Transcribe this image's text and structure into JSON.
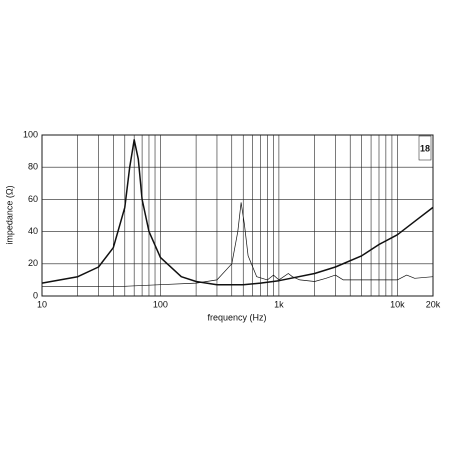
{
  "chart_data": {
    "type": "line",
    "logo": "18",
    "xlabel": "frequency (Hz)",
    "ylabel": "impedance (Ω)",
    "xlog": true,
    "grid": true,
    "xlim": [
      10,
      20000
    ],
    "ylim": [
      0,
      100
    ],
    "xticks": [
      10,
      100,
      {
        "value": 1000,
        "label": "1k"
      },
      {
        "value": 10000,
        "label": "10k"
      },
      {
        "value": 20000,
        "label": "20k"
      }
    ],
    "xminor_ticks": [
      20,
      30,
      40,
      50,
      60,
      70,
      80,
      90,
      200,
      300,
      400,
      500,
      600,
      700,
      800,
      900,
      2000,
      3000,
      4000,
      5000,
      6000,
      7000,
      8000,
      9000
    ],
    "yticks": [
      0,
      20,
      40,
      60,
      80,
      100
    ],
    "series": [
      {
        "color": "#111111",
        "width": 1.5,
        "x": [
          10,
          20,
          30,
          40,
          50,
          55,
          60,
          65,
          70,
          80,
          100,
          150,
          200,
          300,
          500,
          700,
          1000,
          2000,
          3000,
          5000,
          7000,
          10000,
          15000,
          20000
        ],
        "values": [
          8,
          12,
          18,
          30,
          55,
          80,
          97,
          85,
          60,
          40,
          24,
          12,
          9,
          7,
          7,
          8,
          9.5,
          14,
          18,
          25,
          32,
          38,
          48,
          55
        ]
      },
      {
        "color": "#111111",
        "width": 0.7,
        "x": [
          10,
          50,
          100,
          200,
          300,
          400,
          450,
          480,
          510,
          550,
          650,
          800,
          900,
          1000,
          1200,
          1300,
          1500,
          2000,
          2500,
          3000,
          3500,
          5000,
          10000,
          12000,
          14000,
          20000
        ],
        "values": [
          6,
          6,
          7,
          8,
          10,
          20,
          40,
          58,
          45,
          25,
          12,
          10,
          13,
          10,
          14,
          12,
          10,
          9,
          11,
          13,
          10,
          10,
          10,
          13,
          11,
          12
        ]
      }
    ]
  }
}
